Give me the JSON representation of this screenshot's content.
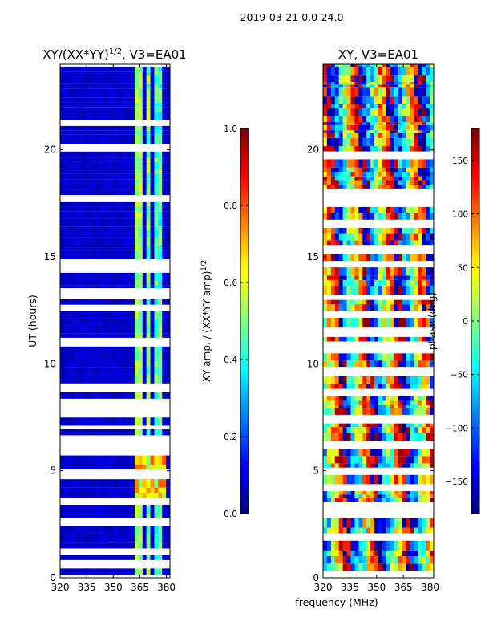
{
  "figure_title": "2019-03-21 0.0-24.0",
  "chart_data": [
    {
      "type": "heatmap",
      "title_main": "XY/(XX*YY)",
      "title_exp": "1/2",
      "title_suffix": ", V3=EA01",
      "xlabel": "",
      "ylabel": "UT (hours)",
      "xlim": [
        320,
        382
      ],
      "ylim": [
        0,
        24
      ],
      "xticks": [
        "320",
        "335",
        "350",
        "365",
        "380"
      ],
      "xtick_values": [
        320,
        335,
        350,
        365,
        380
      ],
      "yticks": [
        "0",
        "5",
        "10",
        "15",
        "20"
      ],
      "ytick_values": [
        0,
        5,
        10,
        15,
        20
      ],
      "colorbar": {
        "label_main": "XY amp. / (XX*YY amp)",
        "label_exp": "1/2",
        "range": [
          0.0,
          1.0
        ],
        "ticks": [
          "0.0",
          "0.2",
          "0.4",
          "0.6",
          "0.8",
          "1.0"
        ],
        "tick_values": [
          0.0,
          0.2,
          0.4,
          0.6,
          0.8,
          1.0
        ],
        "colormap": "jet"
      }
    },
    {
      "type": "heatmap",
      "title_main": "XY, V3=EA01",
      "xlabel": "frequency (MHz)",
      "ylabel": "",
      "xlim": [
        320,
        382
      ],
      "ylim": [
        0,
        24
      ],
      "xticks": [
        "320",
        "335",
        "350",
        "365",
        "380"
      ],
      "xtick_values": [
        320,
        335,
        350,
        365,
        380
      ],
      "yticks": [
        "0",
        "5",
        "10",
        "15",
        "20"
      ],
      "ytick_values": [
        0,
        5,
        10,
        15,
        20
      ],
      "colorbar": {
        "label_main": "phase (deg)",
        "range": [
          -180,
          180
        ],
        "ticks": [
          "−150",
          "−100",
          "−50",
          "0",
          "50",
          "100",
          "150"
        ],
        "tick_values": [
          -150,
          -100,
          -50,
          0,
          50,
          100,
          150
        ],
        "colormap": "jet"
      }
    }
  ]
}
